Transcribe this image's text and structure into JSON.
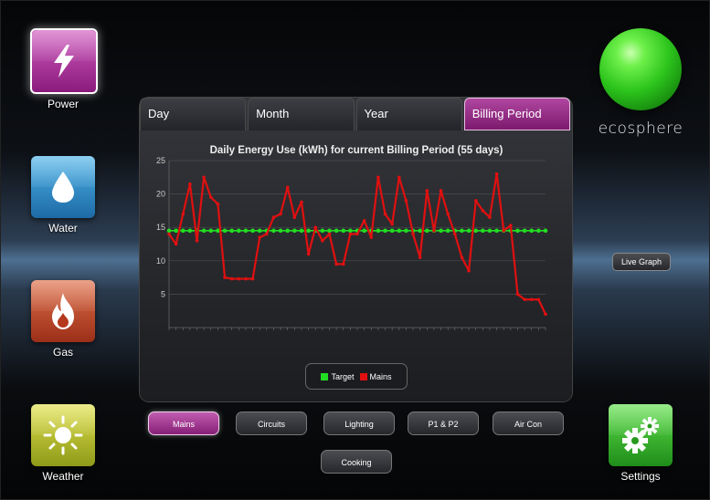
{
  "sidebar": {
    "items": [
      {
        "label": "Power",
        "icon": "lightning-icon"
      },
      {
        "label": "Water",
        "icon": "water-drop-icon"
      },
      {
        "label": "Gas",
        "icon": "flame-icon"
      },
      {
        "label": "Weather",
        "icon": "sun-icon"
      }
    ]
  },
  "tabs": [
    {
      "label": "Day"
    },
    {
      "label": "Month"
    },
    {
      "label": "Year"
    },
    {
      "label": "Billing Period",
      "active": true
    }
  ],
  "brand": "ecosphere",
  "live_graph_label": "Live Graph",
  "settings": {
    "label": "Settings",
    "icon": "gears-icon"
  },
  "circuits": [
    {
      "label": "Mains",
      "active": true
    },
    {
      "label": "Circuits"
    },
    {
      "label": "Lighting"
    },
    {
      "label": "P1 & P2"
    },
    {
      "label": "Air Con"
    },
    {
      "label": "Cooking"
    }
  ],
  "colors": {
    "target": "#22dd22",
    "mains": "#e01010",
    "accent": "#9b2a8c"
  },
  "chart_data": {
    "type": "line",
    "title": "Daily Energy Use (kWh) for current Billing Period (55 days)",
    "xlabel": "",
    "ylabel": "",
    "ylim": [
      0,
      25
    ],
    "yticks": [
      "25",
      "20",
      "15",
      "10",
      "5"
    ],
    "grid": true,
    "legend": "bottom-center",
    "x": [
      1,
      2,
      3,
      4,
      5,
      6,
      7,
      8,
      9,
      10,
      11,
      12,
      13,
      14,
      15,
      16,
      17,
      18,
      19,
      20,
      21,
      22,
      23,
      24,
      25,
      26,
      27,
      28,
      29,
      30,
      31,
      32,
      33,
      34,
      35,
      36,
      37,
      38,
      39,
      40,
      41,
      42,
      43,
      44,
      45,
      46,
      47,
      48,
      49,
      50,
      51,
      52,
      53,
      54,
      55
    ],
    "series": [
      {
        "name": "Target",
        "values": [
          14.5,
          14.5,
          14.5,
          14.5,
          14.5,
          14.5,
          14.5,
          14.5,
          14.5,
          14.5,
          14.5,
          14.5,
          14.5,
          14.5,
          14.5,
          14.5,
          14.5,
          14.5,
          14.5,
          14.5,
          14.5,
          14.5,
          14.5,
          14.5,
          14.5,
          14.5,
          14.5,
          14.5,
          14.5,
          14.5,
          14.5,
          14.5,
          14.5,
          14.5,
          14.5,
          14.5,
          14.5,
          14.5,
          14.5,
          14.5,
          14.5,
          14.5,
          14.5,
          14.5,
          14.5,
          14.5,
          14.5,
          14.5,
          14.5,
          14.5,
          14.5,
          14.5,
          14.5,
          14.5,
          14.5
        ]
      },
      {
        "name": "Mains",
        "values": [
          14,
          12.5,
          17,
          21.5,
          13,
          22.5,
          19.5,
          18.5,
          7.5,
          7.3,
          7.3,
          7.3,
          7.3,
          13.5,
          14,
          16.5,
          17,
          21,
          16.5,
          18.8,
          11,
          15,
          13,
          14,
          9.5,
          9.5,
          14,
          14,
          16,
          13.5,
          22.5,
          17,
          15.5,
          22.5,
          19,
          14,
          10.5,
          20.5,
          14.5,
          20.5,
          17,
          14,
          10.5,
          8.5,
          19,
          17.5,
          16.5,
          23,
          14.5,
          15.3,
          5,
          4.2,
          4.2,
          4.2,
          2
        ]
      }
    ]
  }
}
